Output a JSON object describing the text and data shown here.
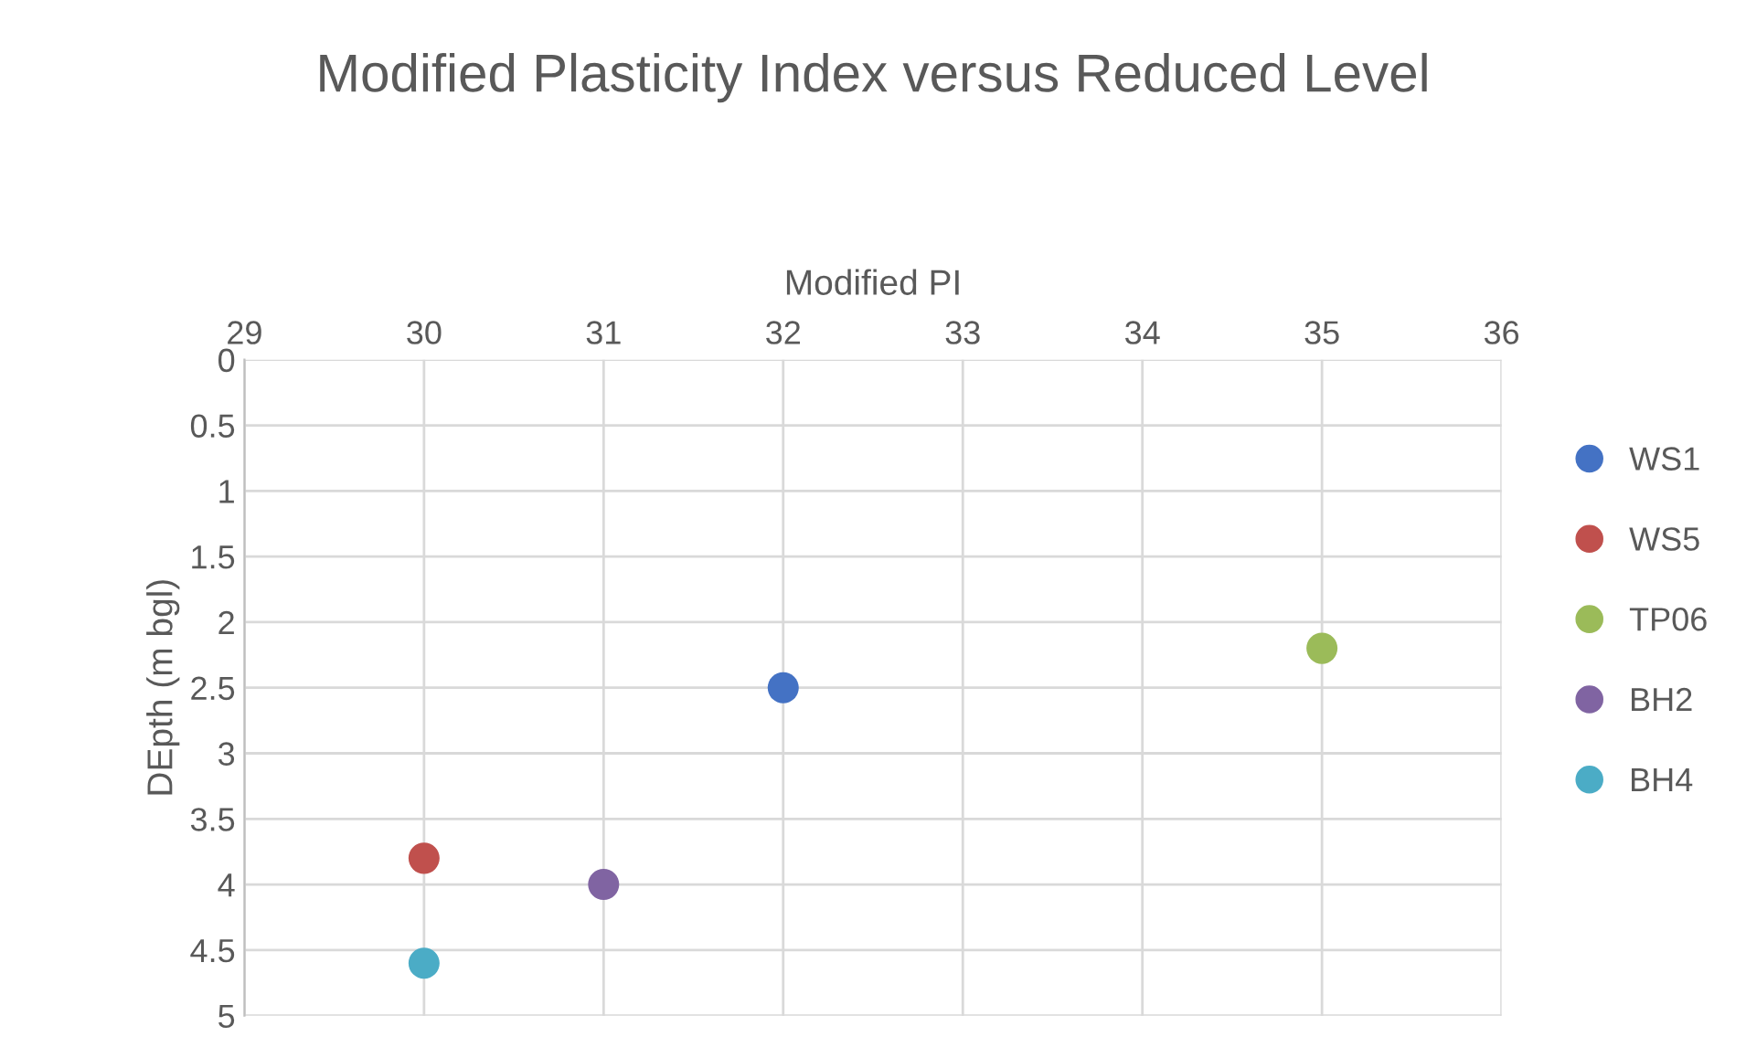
{
  "chart_data": {
    "type": "scatter",
    "title": "Modified Plasticity Index versus Reduced Level",
    "xlabel": "Modified PI",
    "ylabel": "DEpth (m bgl)",
    "series": [
      {
        "name": "WS1",
        "color": "#4472c4",
        "x": [
          32
        ],
        "values": [
          2.5
        ]
      },
      {
        "name": "WS5",
        "color": "#c0504d",
        "x": [
          30
        ],
        "values": [
          3.8
        ]
      },
      {
        "name": "TP06",
        "color": "#9bbb59",
        "x": [
          35
        ],
        "values": [
          2.2
        ]
      },
      {
        "name": "BH2",
        "color": "#8064a2",
        "x": [
          31
        ],
        "values": [
          4.0
        ]
      },
      {
        "name": "BH4",
        "color": "#4bacc6",
        "x": [
          30
        ],
        "values": [
          4.6
        ]
      }
    ],
    "xlim": [
      29,
      36
    ],
    "xticks": [
      29,
      30,
      31,
      32,
      33,
      34,
      35,
      36
    ],
    "ylim": [
      5,
      0
    ],
    "yticks": [
      0,
      0.5,
      1,
      1.5,
      2,
      2.5,
      3,
      3.5,
      4,
      4.5,
      5
    ],
    "grid": true,
    "legend": "right",
    "marker": "circle"
  }
}
